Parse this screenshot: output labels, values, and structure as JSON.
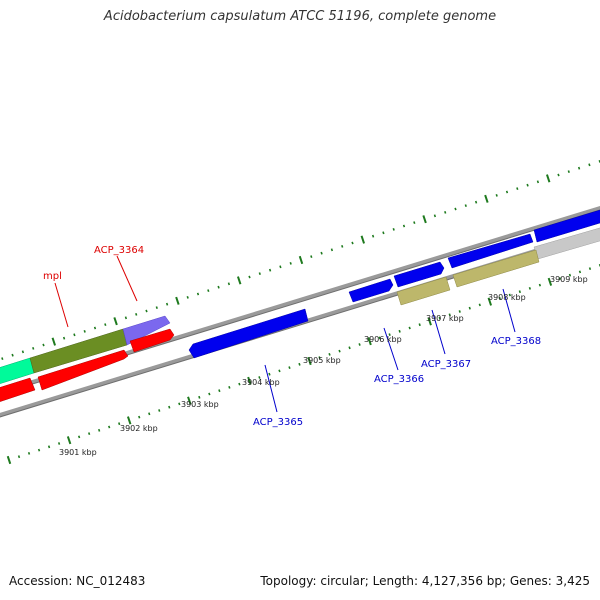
{
  "header": {
    "title": "Acidobacterium capsulatum ATCC 51196, complete genome"
  },
  "footer": {
    "accession": "Accession: NC_012483",
    "stats": "Topology: circular; Length: 4,127,356 bp; Genes: 3,425"
  },
  "colors": {
    "backbone": "#808080",
    "tick": "#1e7a1e",
    "red_gene": "#ff0000",
    "blue_gene": "#0000ee",
    "olive_gene": "#6b8e23",
    "khaki_gene": "#bdb76b",
    "purple_gene": "#7b68ee",
    "green_gene": "#00fa9a",
    "grey_gene": "#c8c8c8"
  },
  "ticks": [
    {
      "label": "3901 kbp"
    },
    {
      "label": "3902 kbp"
    },
    {
      "label": "3903 kbp"
    },
    {
      "label": "3904 kbp"
    },
    {
      "label": "3905 kbp"
    },
    {
      "label": "3906 kbp"
    },
    {
      "label": "3907 kbp"
    },
    {
      "label": "3908 kbp"
    },
    {
      "label": "3909 kbp"
    }
  ],
  "gene_labels": [
    {
      "text": "mpl",
      "color": "#dd0000"
    },
    {
      "text": "ACP_3364",
      "color": "#dd0000"
    },
    {
      "text": "ACP_3365",
      "color": "#0000cc"
    },
    {
      "text": "ACP_3366",
      "color": "#0000cc"
    },
    {
      "text": "ACP_3367",
      "color": "#0000cc"
    },
    {
      "text": "ACP_3368",
      "color": "#0000cc"
    }
  ]
}
